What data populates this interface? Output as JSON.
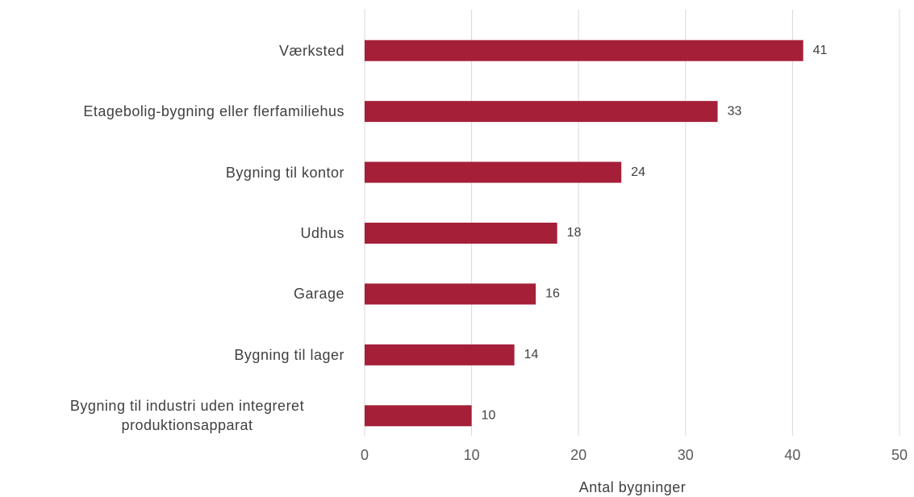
{
  "chart_data": {
    "type": "bar",
    "orientation": "horizontal",
    "categories": [
      "Værksted",
      "Etagebolig-bygning eller flerfamiliehus",
      "Bygning til kontor",
      "Udhus",
      "Garage",
      "Bygning til lager",
      "Bygning til industri uden integreret produktionsapparat"
    ],
    "values": [
      41,
      33,
      24,
      18,
      16,
      14,
      10
    ],
    "color": "#a51f38",
    "xlabel": "Antal bygninger",
    "xlim": [
      0,
      50
    ],
    "xticks": [
      0,
      10,
      20,
      30,
      40,
      50
    ],
    "grid": true
  }
}
